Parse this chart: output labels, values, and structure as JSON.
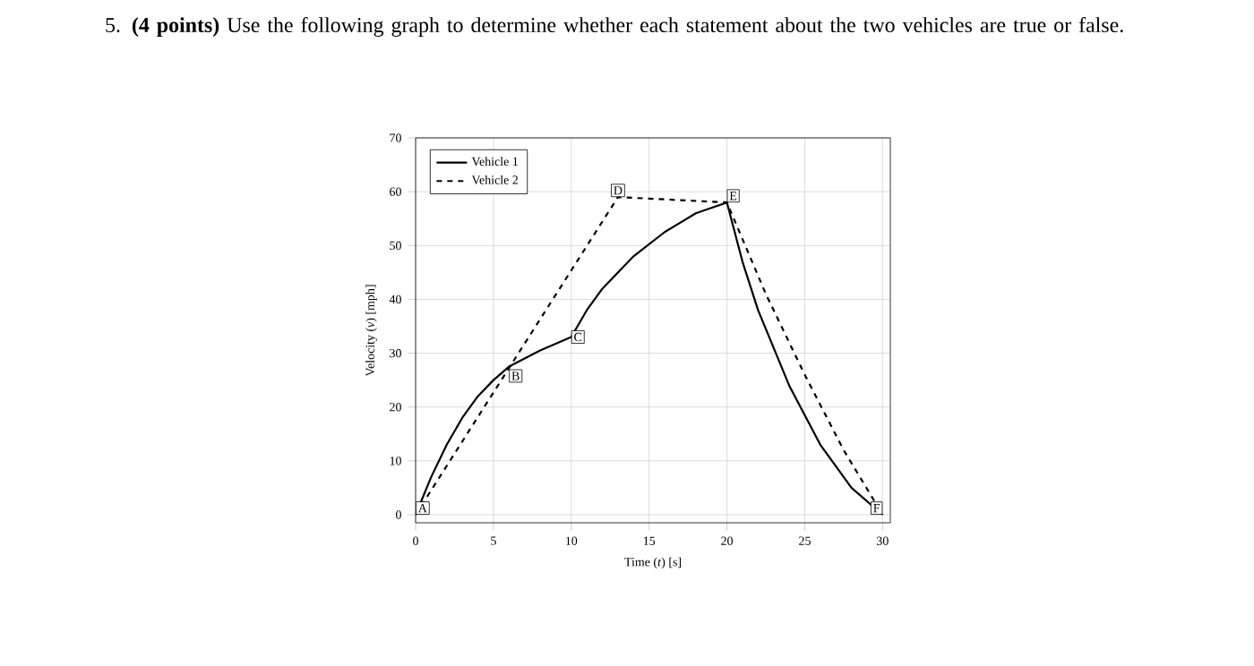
{
  "chart_data": {
    "type": "line",
    "title": "5. **(4 points)** Use the following graph to determine whether each statement about the two vehicles are true or false.",
    "xlabel": "Time (*t*) [s]",
    "ylabel": "Velocity (*v*) [mph]",
    "xlim": [
      0,
      30.5
    ],
    "ylim": [
      -1.5,
      70
    ],
    "xticks": [
      0,
      5,
      10,
      15,
      20,
      25,
      30
    ],
    "yticks": [
      0,
      10,
      20,
      30,
      40,
      50,
      60,
      70
    ],
    "grid": true,
    "legend": "top left",
    "series": [
      {
        "name": "Vehicle 1",
        "color": "#000000",
        "line_style": "solid",
        "x": [
          0,
          1,
          2,
          3,
          4,
          5,
          6,
          8,
          10,
          11,
          12,
          14,
          16,
          18,
          20,
          21,
          22,
          24,
          26,
          28,
          30
        ],
        "values": [
          0,
          7,
          13,
          18,
          22,
          25,
          27.5,
          30.5,
          33,
          38,
          42,
          48,
          52.5,
          56,
          58,
          47,
          38,
          24,
          13,
          5,
          0
        ]
      },
      {
        "name": "Vehicle 2",
        "color": "#000000",
        "line_style": "dashed",
        "x": [
          0,
          13,
          20,
          22.5,
          25,
          27.5,
          30
        ],
        "values": [
          0,
          59,
          58,
          41,
          26,
          12,
          0
        ]
      }
    ],
    "annotations": [
      {
        "text": "A",
        "x": 0,
        "y": 0
      },
      {
        "text": "B",
        "x": 6,
        "y": 27
      },
      {
        "text": "C",
        "x": 10,
        "y": 33
      },
      {
        "text": "D",
        "x": 13,
        "y": 59
      },
      {
        "text": "E",
        "x": 20,
        "y": 58
      },
      {
        "text": "F",
        "x": 30,
        "y": 0
      }
    ]
  }
}
